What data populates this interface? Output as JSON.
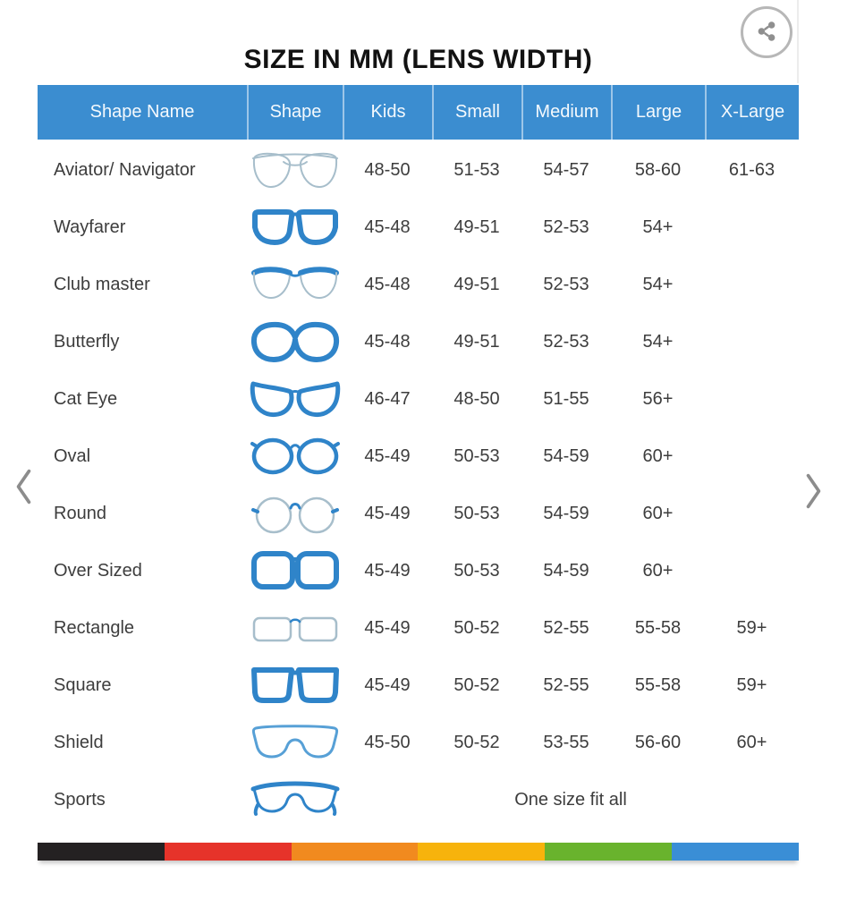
{
  "page": {
    "title": "SIZE IN MM (LENS WIDTH)"
  },
  "colors": {
    "header_bg": "#3b8dd0",
    "frame_blue": "#2f84c9",
    "frame_light": "#a7becb",
    "frame_lightblue": "#57a0d6",
    "stripe": [
      "#242122",
      "#e6332a",
      "#f18a1f",
      "#f7b30c",
      "#69b32d",
      "#3a8ed6"
    ]
  },
  "table": {
    "columns": [
      "Shape Name",
      "Shape",
      "Kids",
      "Small",
      "Medium",
      "Large",
      "X-Large"
    ],
    "rows": [
      {
        "name": "Aviator/ Navigator",
        "icon": "aviator-glasses-icon",
        "kids": "48-50",
        "small": "51-53",
        "medium": "54-57",
        "large": "58-60",
        "xlarge": "61-63"
      },
      {
        "name": "Wayfarer",
        "icon": "wayfarer-glasses-icon",
        "kids": "45-48",
        "small": "49-51",
        "medium": "52-53",
        "large": "54+",
        "xlarge": ""
      },
      {
        "name": "Club master",
        "icon": "clubmaster-glasses-icon",
        "kids": "45-48",
        "small": "49-51",
        "medium": "52-53",
        "large": "54+",
        "xlarge": ""
      },
      {
        "name": "Butterfly",
        "icon": "butterfly-glasses-icon",
        "kids": "45-48",
        "small": "49-51",
        "medium": "52-53",
        "large": "54+",
        "xlarge": ""
      },
      {
        "name": "Cat Eye",
        "icon": "cateye-glasses-icon",
        "kids": "46-47",
        "small": "48-50",
        "medium": "51-55",
        "large": "56+",
        "xlarge": ""
      },
      {
        "name": "Oval",
        "icon": "oval-glasses-icon",
        "kids": "45-49",
        "small": "50-53",
        "medium": "54-59",
        "large": "60+",
        "xlarge": ""
      },
      {
        "name": "Round",
        "icon": "round-glasses-icon",
        "kids": "45-49",
        "small": "50-53",
        "medium": "54-59",
        "large": "60+",
        "xlarge": ""
      },
      {
        "name": "Over Sized",
        "icon": "oversized-glasses-icon",
        "kids": "45-49",
        "small": "50-53",
        "medium": "54-59",
        "large": "60+",
        "xlarge": ""
      },
      {
        "name": "Rectangle",
        "icon": "rectangle-glasses-icon",
        "kids": "45-49",
        "small": "50-52",
        "medium": "52-55",
        "large": "55-58",
        "xlarge": "59+"
      },
      {
        "name": "Square",
        "icon": "square-glasses-icon",
        "kids": "45-49",
        "small": "50-52",
        "medium": "52-55",
        "large": "55-58",
        "xlarge": "59+"
      },
      {
        "name": "Shield",
        "icon": "shield-glasses-icon",
        "kids": "45-50",
        "small": "50-52",
        "medium": "53-55",
        "large": "56-60",
        "xlarge": "60+"
      },
      {
        "name": "Sports",
        "icon": "sports-glasses-icon",
        "span_text": "One size fit all"
      }
    ]
  },
  "chart_data": {
    "type": "table",
    "title": "SIZE IN MM (LENS WIDTH)",
    "columns": [
      "Shape Name",
      "Kids",
      "Small",
      "Medium",
      "Large",
      "X-Large"
    ],
    "rows": [
      [
        "Aviator/ Navigator",
        "48-50",
        "51-53",
        "54-57",
        "58-60",
        "61-63"
      ],
      [
        "Wayfarer",
        "45-48",
        "49-51",
        "52-53",
        "54+",
        ""
      ],
      [
        "Club master",
        "45-48",
        "49-51",
        "52-53",
        "54+",
        ""
      ],
      [
        "Butterfly",
        "45-48",
        "49-51",
        "52-53",
        "54+",
        ""
      ],
      [
        "Cat Eye",
        "46-47",
        "48-50",
        "51-55",
        "56+",
        ""
      ],
      [
        "Oval",
        "45-49",
        "50-53",
        "54-59",
        "60+",
        ""
      ],
      [
        "Round",
        "45-49",
        "50-53",
        "54-59",
        "60+",
        ""
      ],
      [
        "Over Sized",
        "45-49",
        "50-53",
        "54-59",
        "60+",
        ""
      ],
      [
        "Rectangle",
        "45-49",
        "50-52",
        "52-55",
        "55-58",
        "59+"
      ],
      [
        "Square",
        "45-49",
        "50-52",
        "52-55",
        "55-58",
        "59+"
      ],
      [
        "Shield",
        "45-50",
        "50-52",
        "53-55",
        "56-60",
        "60+"
      ],
      [
        "Sports",
        "One size fit all",
        "",
        "",
        "",
        ""
      ]
    ]
  }
}
